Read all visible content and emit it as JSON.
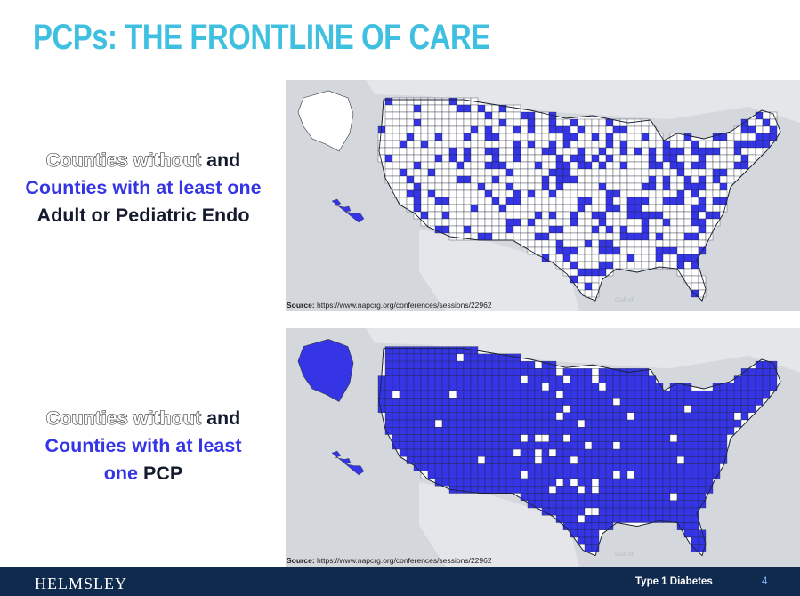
{
  "slide": {
    "title": "PCPs: THE FRONTLINE OF CARE",
    "colors": {
      "title": "#40c0e0",
      "accent": "#3535e6",
      "footer": "#0f2a4d",
      "map_water": "#d4d8dd",
      "map_land": "#e4e6e9"
    }
  },
  "panel_endo": {
    "line1_outlined": "Counties without",
    "line1_bold": "and",
    "line2": "Counties with at least one",
    "line3": "Adult or Pediatric Endo",
    "map_label": "Gulf of",
    "source_label": "Source:",
    "source_url": "https://www.napcrg.org/conferences/sessions/22962",
    "coverage_fraction": 0.3
  },
  "panel_pcp": {
    "line1_outlined": "Counties without",
    "line1_bold": "and",
    "line2": "Counties with at least",
    "line3_blue": "one",
    "line3_dark": "PCP",
    "map_label": "Gulf of",
    "source_label": "Source:",
    "source_url": "https://www.napcrg.org/conferences/sessions/22962",
    "coverage_fraction": 0.92
  },
  "footer": {
    "logo": "HELMSLEY",
    "label": "Type 1 Diabetes",
    "page": "4"
  }
}
